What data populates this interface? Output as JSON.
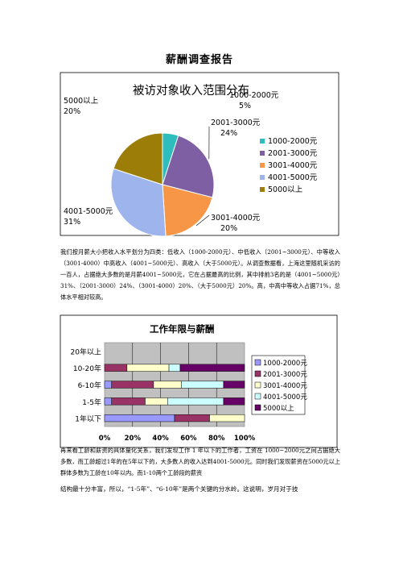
{
  "document": {
    "title": "薪酬调查报告",
    "paragraph1": "我们按月薪大小把收入水平划分为四类：低收入（1000-2000元）、中低收入（2001~3000元）、中等收入（3001-4000）中高收入（4001~5000元）、高收入（大于5000元）。从调查数据看，上海这里随机采访的一百人，占据绝大多数的是月薪4001~5000元，它在占据最高的比例，其中排前3名的是（4001~5000元）31%、（2001-3000）24%、（3001-4000）20%、（大于5000元）20%。高，中高中等收入占据71%，总体水平相对较高。",
    "paragraph2": "再来看工龄和薪资的具体量化关系，我们发现工作 1 年以下的工作者，工资在 1000~2000元之间占据绝大多数，而工龄超过1年的在5年以下的，大多数人的收入达到4001-5000元。同时我们发现薪资在5000元以上群体多数为工龄在10年以内。而1-10两个工龄段的薪资",
    "paragraph3": "结构最十分丰富，所以，“1-5年”、“6-10年”是两个关键的分水岭。这说明，岁月对于技"
  },
  "pie_chart": {
    "chart_data": {
      "type": "pie",
      "title": "被访对象收入范围分布",
      "categories": [
        "1000-2000元",
        "2001-3000元",
        "3001-4000元",
        "4001-5000元",
        "5000以上"
      ],
      "values": [
        5,
        24,
        20,
        31,
        20
      ],
      "colors": [
        "#2dbdbd",
        "#7f5fa3",
        "#f79646",
        "#9db4ec",
        "#9c7d07"
      ],
      "data_labels": [
        "1000-2000元, 5%",
        "2001-3000元, 24%",
        "3001-4000元, 20%",
        "4001-5000元, 31%",
        "5000以上, 20%"
      ],
      "legend_position": "right"
    }
  },
  "bar_chart": {
    "chart_data": {
      "type": "bar",
      "orientation": "horizontal",
      "stacked": "100%",
      "title": "工作年限与薪酬",
      "categories": [
        "20年以上",
        "10-20年",
        "6-10年",
        "1-5年",
        "1年以下"
      ],
      "series": [
        {
          "name": "1000-2000元",
          "color": "#9999ff",
          "values": [
            0,
            0,
            5,
            5,
            50
          ]
        },
        {
          "name": "2001-3000元",
          "color": "#993366",
          "values": [
            0,
            16,
            30,
            24,
            25
          ]
        },
        {
          "name": "3001-4000元",
          "color": "#ffffcc",
          "values": [
            0,
            30,
            20,
            16,
            25
          ]
        },
        {
          "name": "4001-5000元",
          "color": "#ccffff",
          "values": [
            0,
            8,
            30,
            40,
            0
          ]
        },
        {
          "name": "5000以上",
          "color": "#660066",
          "values": [
            0,
            46,
            15,
            15,
            0
          ]
        }
      ],
      "x_ticks": [
        "0%",
        "20%",
        "40%",
        "60%",
        "80%",
        "100%"
      ],
      "grid": true,
      "legend_position": "right"
    }
  }
}
